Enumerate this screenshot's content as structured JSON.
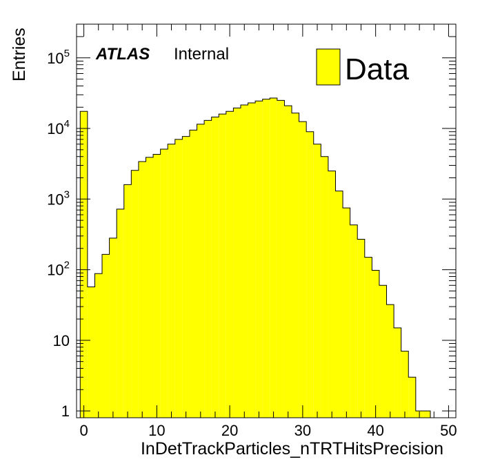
{
  "chart_data": {
    "type": "bar",
    "xlabel": "InDetTrackParticles_nTRTHitsPrecision",
    "ylabel": "Entries",
    "xlim": [
      -1,
      51
    ],
    "ylim": [
      0.8,
      300000
    ],
    "log_y": true,
    "x_ticks": [
      {
        "value": 0,
        "label": "0"
      },
      {
        "value": 10,
        "label": "10"
      },
      {
        "value": 20,
        "label": "20"
      },
      {
        "value": 30,
        "label": "30"
      },
      {
        "value": 40,
        "label": "40"
      },
      {
        "value": 50,
        "label": "50"
      }
    ],
    "y_ticks": [
      {
        "value": 1,
        "base": "1",
        "exp": ""
      },
      {
        "value": 10,
        "base": "10",
        "exp": ""
      },
      {
        "value": 100,
        "base": "10",
        "exp": "2"
      },
      {
        "value": 1000,
        "base": "10",
        "exp": "3"
      },
      {
        "value": 10000,
        "base": "10",
        "exp": "4"
      },
      {
        "value": 100000,
        "base": "10",
        "exp": "5"
      }
    ],
    "bin_width": 1,
    "x_start": -0.5,
    "values": [
      17500,
      57,
      88,
      165,
      280,
      720,
      1600,
      2550,
      3400,
      3900,
      4300,
      5100,
      6000,
      7000,
      7700,
      9500,
      11500,
      13000,
      14500,
      16000,
      17500,
      19500,
      21500,
      23000,
      24500,
      26000,
      27000,
      25000,
      21000,
      16500,
      12500,
      9000,
      6000,
      4000,
      2500,
      1300,
      750,
      430,
      270,
      150,
      98,
      60,
      32,
      15,
      7,
      3,
      1,
      1
    ],
    "series": [
      {
        "name": "Data",
        "color": "#ffff00"
      }
    ],
    "legend_position": "top-right",
    "grid": false
  },
  "labels": {
    "atlas": "ATLAS",
    "atlas_status": "Internal",
    "legend_entry": "Data"
  }
}
